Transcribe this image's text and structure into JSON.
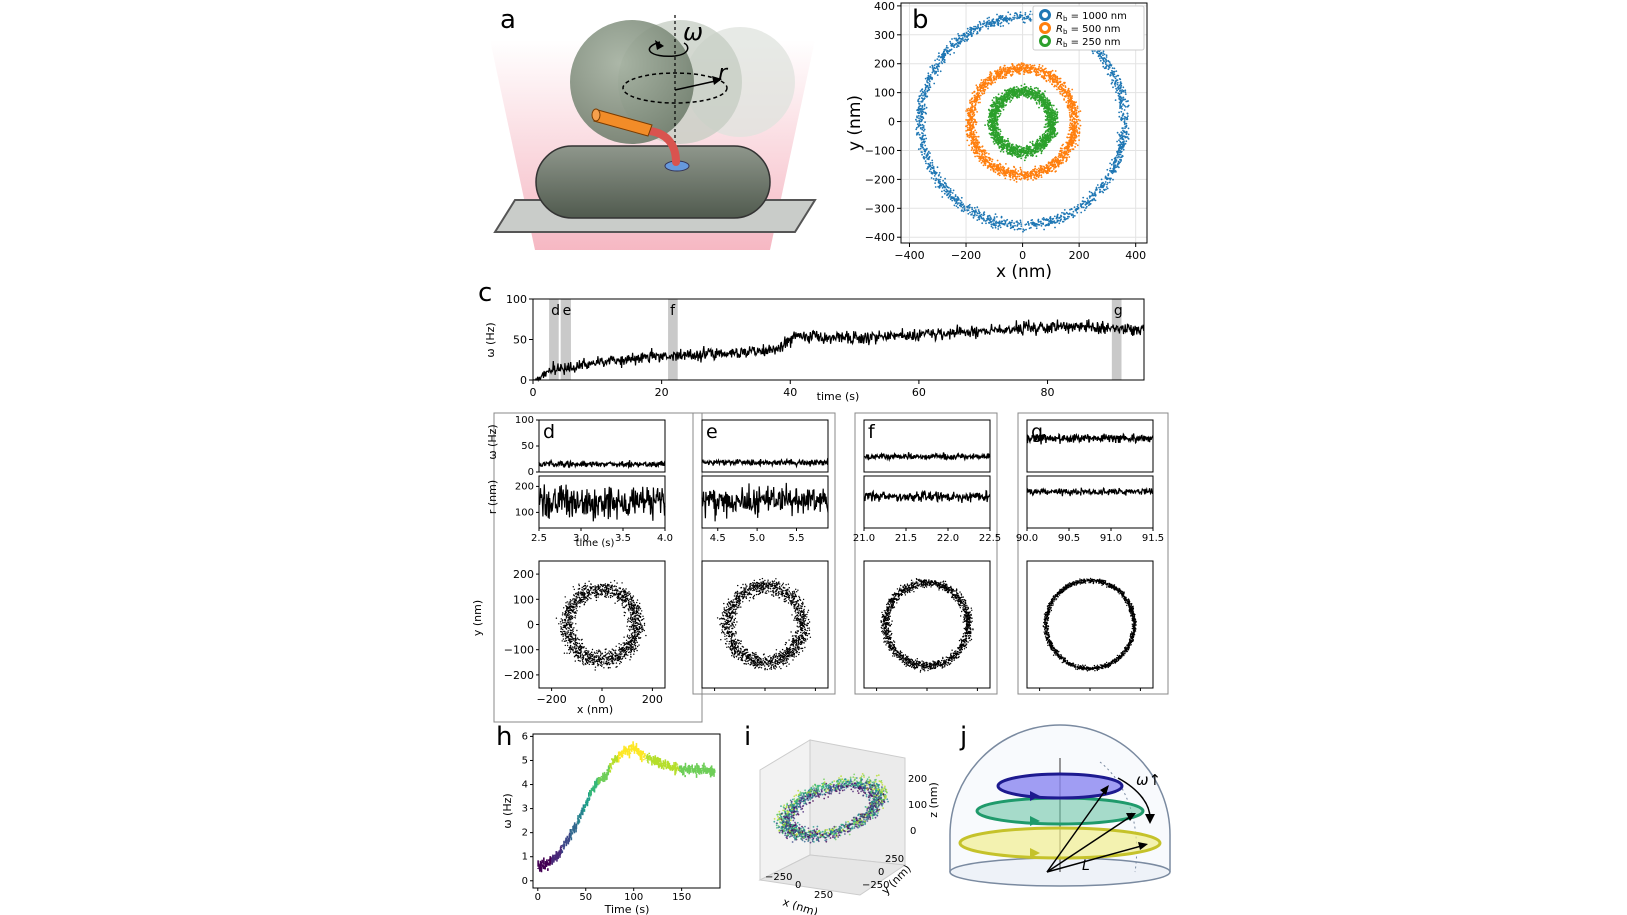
{
  "panels": {
    "a": {
      "letter": "a",
      "omega": "ω",
      "r": "r"
    },
    "b": {
      "letter": "b",
      "xlabel": "x (nm)",
      "ylabel": "y (nm)"
    },
    "c": {
      "letter": "c",
      "xlabel": "time (s)",
      "ylabel": "ω (Hz)",
      "marks": [
        "d",
        "e",
        "f",
        "g"
      ]
    },
    "d": {
      "letter": "d"
    },
    "e": {
      "letter": "e"
    },
    "f": {
      "letter": "f"
    },
    "g": {
      "letter": "g"
    },
    "shared": {
      "omega_label": "ω (Hz)",
      "r_label": "r (nm)",
      "time_label": "time (s)",
      "y_label": "y (nm)",
      "x_label": "x (nm)"
    },
    "h": {
      "letter": "h",
      "xlabel": "Time (s)",
      "ylabel": "ω (Hz)"
    },
    "i": {
      "letter": "i",
      "xlabel": "x (nm)",
      "ylabel": "y (nm)",
      "zlabel": "z (nm)"
    },
    "j": {
      "letter": "j",
      "omega": "ω↑",
      "L": "L"
    }
  },
  "colors": {
    "blue": "#1f77b4",
    "orange": "#ff7f0e",
    "green": "#2ca02c"
  },
  "chart_data": [
    {
      "id": "b",
      "type": "scatter",
      "xlabel": "x (nm)",
      "ylabel": "y (nm)",
      "xlim": [
        -430,
        440
      ],
      "ylim": [
        -420,
        410
      ],
      "xticks": [
        -400,
        -200,
        0,
        200,
        400
      ],
      "yticks": [
        -400,
        -300,
        -200,
        -100,
        0,
        100,
        200,
        300,
        400
      ],
      "xtick_labels": [
        "−400",
        "−200",
        "0",
        "200",
        "400"
      ],
      "ytick_labels": [
        "−400",
        "−300",
        "−200",
        "−100",
        "0",
        "100",
        "200",
        "300",
        "400"
      ],
      "grid": true,
      "legend_position": "top-right",
      "series": [
        {
          "name": "Rb = 1000 nm",
          "legend": [
            "R",
            "b",
            " = 1000 nm"
          ],
          "color": "#1f77b4",
          "ring_radius": 360,
          "ring_width": 35
        },
        {
          "name": "Rb = 500 nm",
          "legend": [
            "R",
            "b",
            " = 500 nm"
          ],
          "color": "#ff7f0e",
          "ring_radius": 185,
          "ring_width": 38
        },
        {
          "name": "Rb = 250 nm",
          "legend": [
            "R",
            "b",
            " = 250 nm"
          ],
          "color": "#2ca02c",
          "ring_radius": 105,
          "ring_width": 40
        }
      ]
    },
    {
      "id": "c",
      "type": "line",
      "xlabel": "time (s)",
      "ylabel": "ω (Hz)",
      "xlim": [
        0,
        95
      ],
      "ylim": [
        0,
        100
      ],
      "xticks": [
        0,
        20,
        40,
        60,
        80
      ],
      "yticks": [
        0,
        50,
        100
      ],
      "highlights": [
        {
          "label": "d",
          "from": 2.5,
          "to": 4.0
        },
        {
          "label": "e",
          "from": 4.3,
          "to": 5.9
        },
        {
          "label": "f",
          "from": 21.0,
          "to": 22.5
        },
        {
          "label": "g",
          "from": 90.0,
          "to": 91.5
        }
      ],
      "trend": [
        [
          0,
          0
        ],
        [
          3,
          12
        ],
        [
          10,
          22
        ],
        [
          20,
          30
        ],
        [
          30,
          33
        ],
        [
          38,
          38
        ],
        [
          41,
          55
        ],
        [
          50,
          52
        ],
        [
          60,
          56
        ],
        [
          70,
          60
        ],
        [
          75,
          64
        ],
        [
          85,
          66
        ],
        [
          95,
          62
        ]
      ]
    },
    {
      "id": "d",
      "type": "line",
      "x_range": [
        2.5,
        4.0
      ],
      "xticks": [
        2.5,
        3.0,
        3.5,
        4.0
      ],
      "xtick_labels": [
        "2.5",
        "3.0",
        "3.5",
        "4.0"
      ],
      "xlabel": "time (s)",
      "omega_mean": 15,
      "r_mean": 140,
      "omega_yticks": [
        0,
        50,
        100
      ],
      "r_yticks": [
        100,
        200
      ],
      "xy_ring_radius": 140,
      "xy_ring_width": 65,
      "xy_xticks": [
        -200,
        0,
        200
      ],
      "xy_yticks": [
        -200,
        -100,
        0,
        100,
        200
      ],
      "xy_xtick_labels": [
        "−200",
        "0",
        "200"
      ],
      "xy_ytick_labels": [
        "200",
        "100",
        "0",
        "−100",
        "−200"
      ]
    },
    {
      "id": "e",
      "type": "line",
      "x_range": [
        4.3,
        5.9
      ],
      "xticks": [
        4.5,
        5.0,
        5.5
      ],
      "xtick_labels": [
        "4.5",
        "5.0",
        "5.5"
      ],
      "omega_mean": 18,
      "r_mean": 145,
      "xy_ring_radius": 150,
      "xy_ring_width": 60
    },
    {
      "id": "f",
      "type": "line",
      "x_range": [
        21.0,
        22.5
      ],
      "xticks": [
        21.0,
        21.5,
        22.0,
        22.5
      ],
      "xtick_labels": [
        "21.0",
        "21.5",
        "22.0",
        "22.5"
      ],
      "omega_mean": 30,
      "r_mean": 160,
      "xy_ring_radius": 165,
      "xy_ring_width": 35
    },
    {
      "id": "g",
      "type": "line",
      "x_range": [
        90.0,
        91.5
      ],
      "xticks": [
        90.0,
        90.5,
        91.0,
        91.5
      ],
      "xtick_labels": [
        "90.0",
        "90.5",
        "91.0",
        "91.5"
      ],
      "omega_mean": 65,
      "r_mean": 180,
      "xy_ring_radius": 175,
      "xy_ring_width": 18
    },
    {
      "id": "h",
      "type": "line",
      "xlabel": "Time (s)",
      "ylabel": "ω (Hz)",
      "xlim": [
        -5,
        190
      ],
      "ylim": [
        -0.3,
        6.1
      ],
      "xticks": [
        0,
        50,
        100,
        150
      ],
      "yticks": [
        0,
        1,
        2,
        3,
        4,
        5,
        6
      ],
      "trend": [
        [
          0,
          0.6
        ],
        [
          10,
          0.7
        ],
        [
          20,
          1.0
        ],
        [
          30,
          1.7
        ],
        [
          40,
          2.3
        ],
        [
          50,
          3.2
        ],
        [
          55,
          3.6
        ],
        [
          60,
          4.0
        ],
        [
          70,
          4.3
        ],
        [
          80,
          5.0
        ],
        [
          90,
          5.4
        ],
        [
          100,
          5.5
        ],
        [
          110,
          5.2
        ],
        [
          130,
          4.8
        ],
        [
          150,
          4.6
        ],
        [
          170,
          4.6
        ],
        [
          185,
          4.5
        ]
      ],
      "colormap": "viridis"
    }
  ]
}
